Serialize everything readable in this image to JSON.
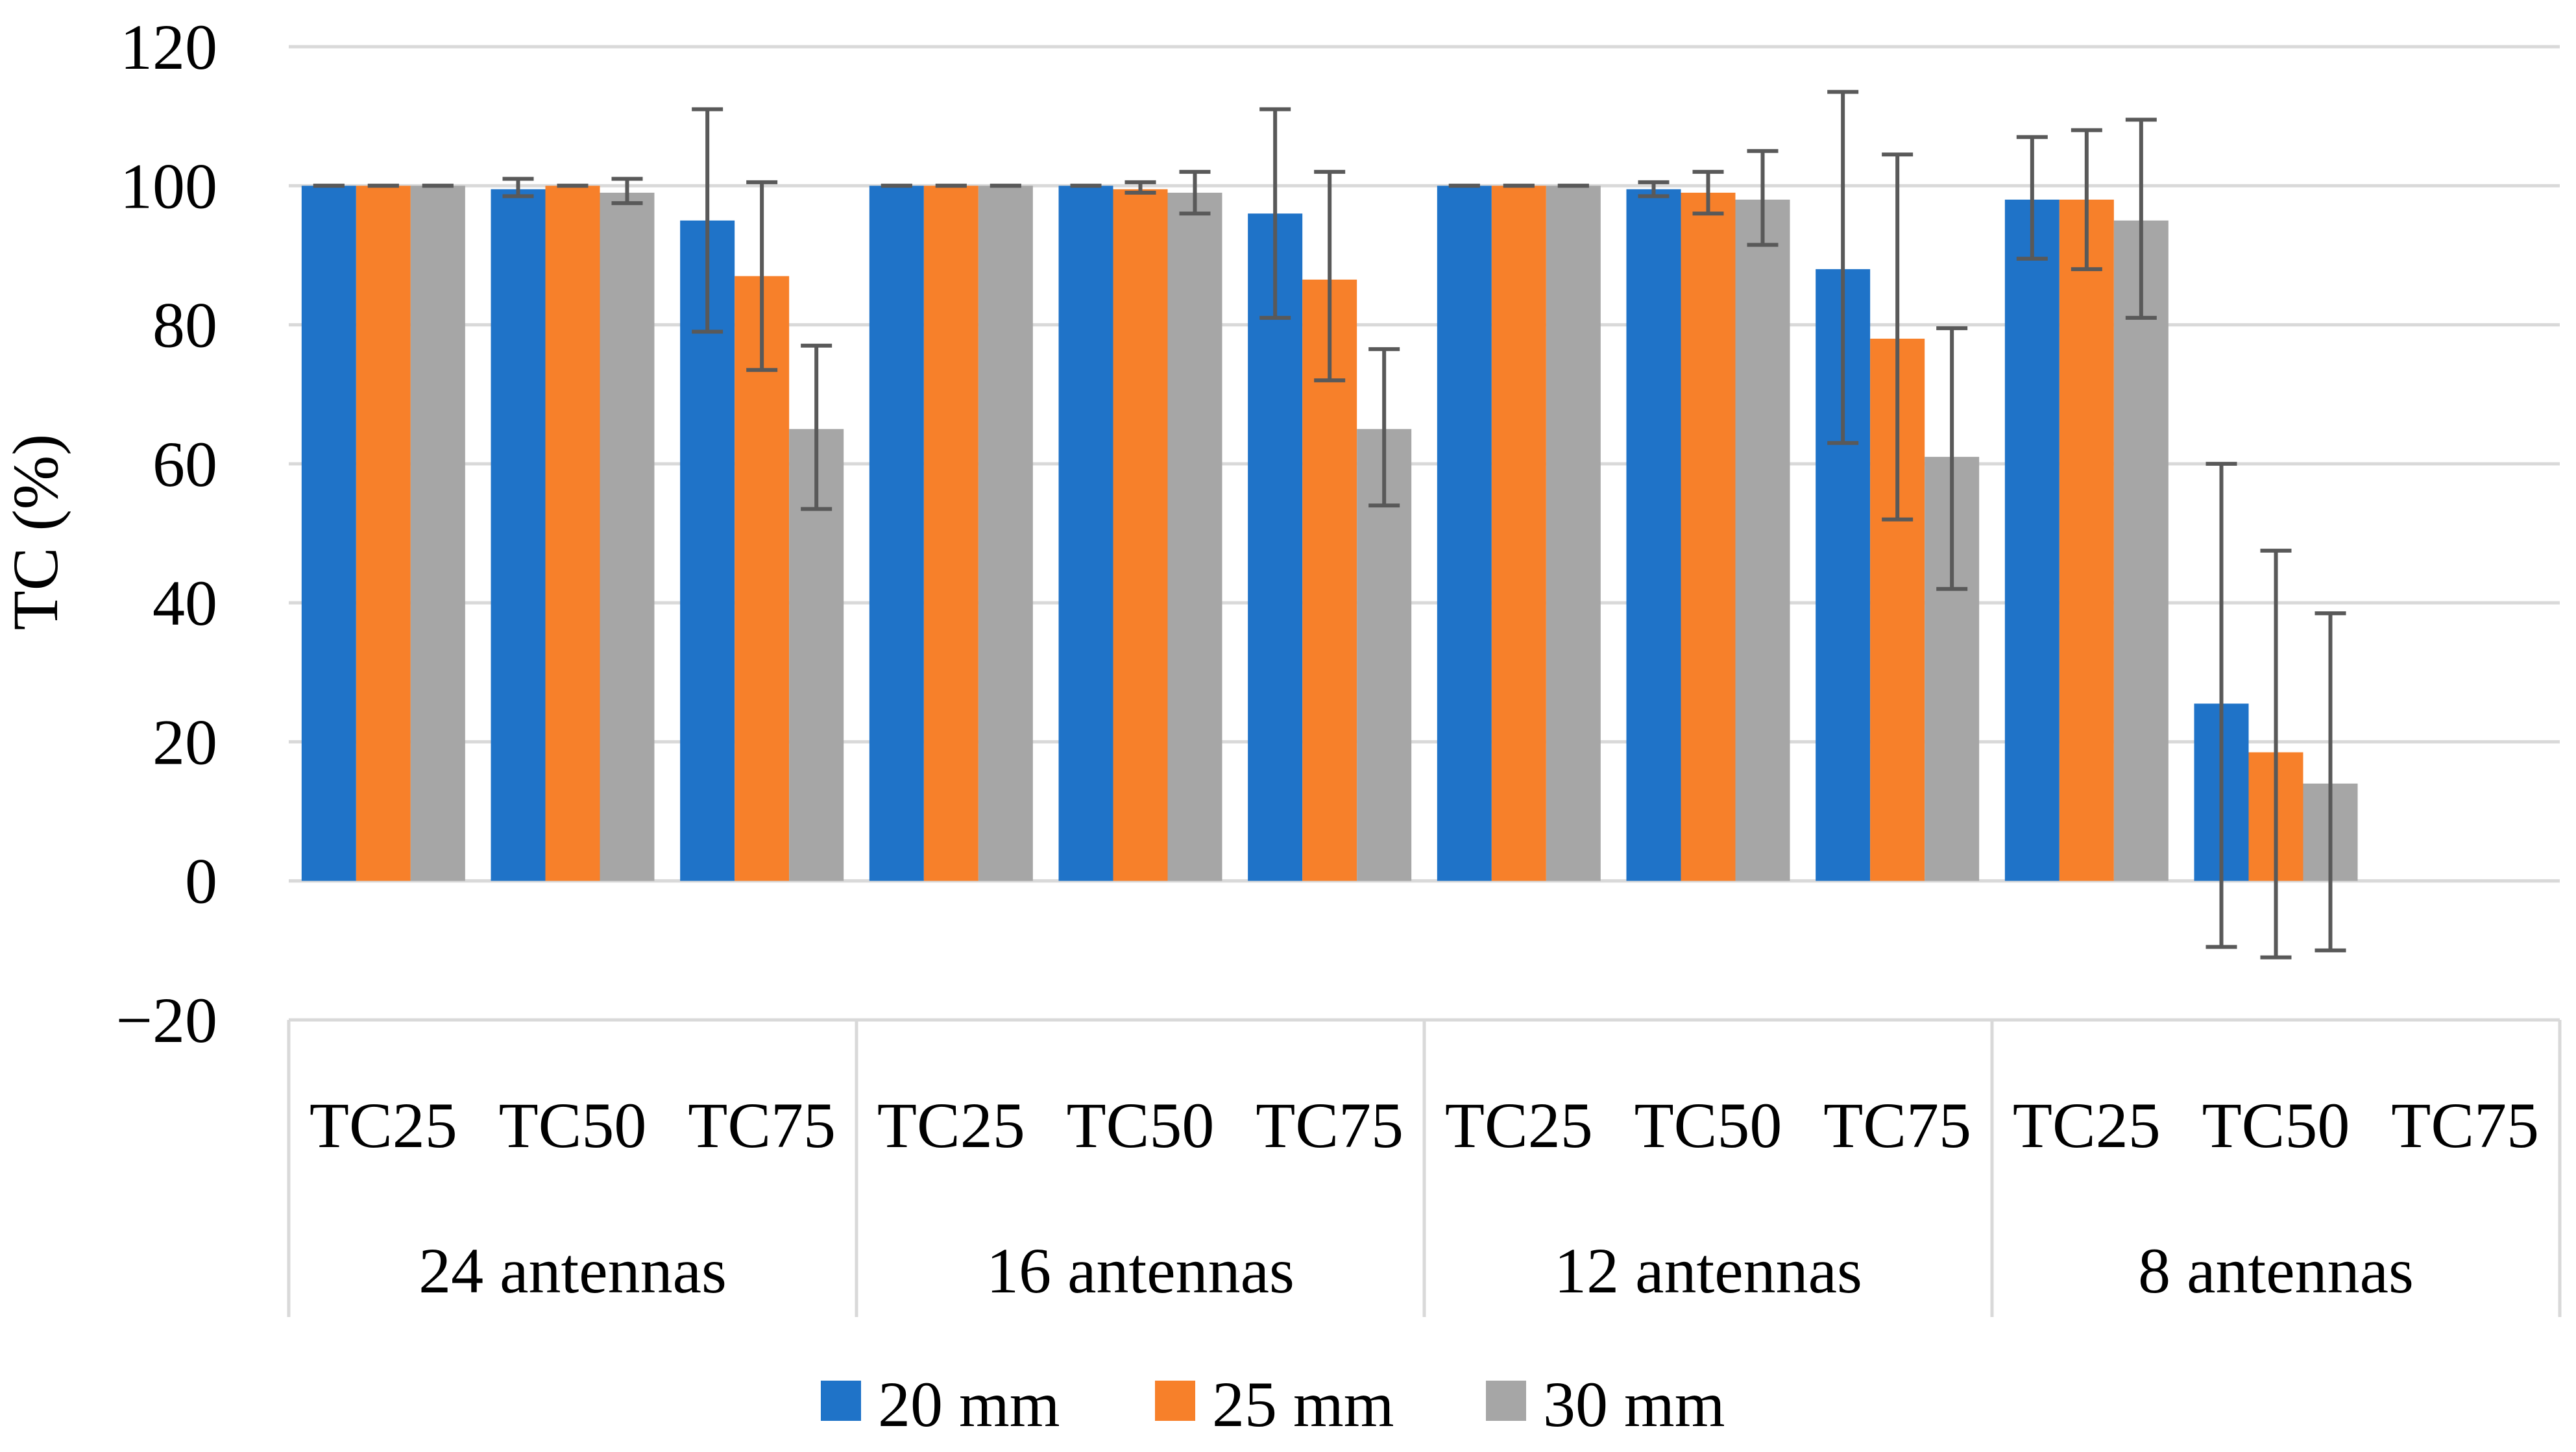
{
  "chart_data": {
    "type": "bar",
    "title": "",
    "ylabel": "TC (%)",
    "xlabel": "",
    "ylim": [
      -20,
      120
    ],
    "yticks": [
      -20,
      0,
      20,
      40,
      60,
      80,
      100,
      120
    ],
    "grid": true,
    "legend_position": "bottom",
    "groups": [
      {
        "label": "24 antennas",
        "categories": [
          "TC25",
          "TC50",
          "TC75"
        ]
      },
      {
        "label": "16 antennas",
        "categories": [
          "TC25",
          "TC50",
          "TC75"
        ]
      },
      {
        "label": "12 antennas",
        "categories": [
          "TC25",
          "TC50",
          "TC75"
        ]
      },
      {
        "label": "8 antennas",
        "categories": [
          "TC25",
          "TC50",
          "TC75"
        ]
      }
    ],
    "series": [
      {
        "name": "20 mm",
        "color": "#1f73c8",
        "values": [
          100,
          99.5,
          95,
          100,
          100,
          96,
          100,
          99.5,
          88,
          98,
          25.5,
          null
        ],
        "error_low": [
          100,
          98.5,
          79,
          100,
          100,
          81,
          100,
          98.5,
          63,
          89.5,
          -9.5,
          null
        ],
        "error_high": [
          100,
          101,
          111,
          100,
          100,
          111,
          100,
          100.5,
          113.5,
          107,
          60,
          null
        ]
      },
      {
        "name": "25 mm",
        "color": "#f7802a",
        "values": [
          100,
          100,
          87,
          100,
          99.5,
          86.5,
          100,
          99,
          78,
          98,
          18.5,
          null
        ],
        "error_low": [
          100,
          100,
          73.5,
          100,
          99,
          72,
          100,
          96,
          52,
          88,
          -11,
          null
        ],
        "error_high": [
          100,
          100,
          100.5,
          100,
          100.5,
          102,
          100,
          102,
          104.5,
          108,
          47.5,
          null
        ]
      },
      {
        "name": "30 mm",
        "color": "#a6a6a6",
        "values": [
          100,
          99,
          65,
          100,
          99,
          65,
          100,
          98,
          61,
          95,
          14,
          null
        ],
        "error_low": [
          100,
          97.5,
          53.5,
          100,
          96,
          54,
          100,
          91.5,
          42,
          81,
          -10,
          null
        ],
        "error_high": [
          100,
          101,
          77,
          100,
          102,
          76.5,
          100,
          105,
          79.5,
          109.5,
          38.5,
          null
        ]
      }
    ]
  }
}
